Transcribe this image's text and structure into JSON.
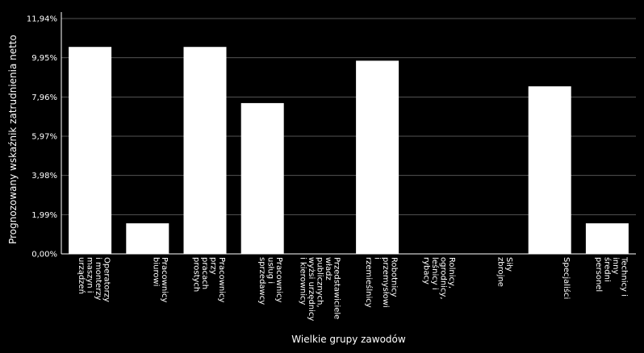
{
  "chart_data": {
    "type": "bar",
    "xlabel": "Wielkie grupy zawodów",
    "ylabel": "Prognozowany wskaźnik zatrudnienia netto",
    "ylim": [
      0,
      11.94
    ],
    "yticks": [
      "0,00%",
      "1,99%",
      "3,98%",
      "5,97%",
      "7,96%",
      "9,95%",
      "11,94%"
    ],
    "grid": true,
    "colors": {
      "background": "#000000",
      "bar": "#ffffff",
      "grid": "#555555",
      "text": "#ffffff"
    },
    "categories": [
      [
        "Operatorzy",
        "i monterzy",
        "maszyn i",
        "urządzeń"
      ],
      [
        "Pracownicy",
        "biurowi"
      ],
      [
        "Pracownicy",
        "przy",
        "pracach",
        "prostych"
      ],
      [
        "Pracownicy",
        "usług i",
        "sprzedawcy"
      ],
      [
        "Przedstawiciele",
        "władz",
        "publicznych,",
        "wyżsi urzędnicy",
        "i kierownicy"
      ],
      [
        "Robotnicy",
        "przemysłowi",
        "i",
        "rzemieślnicy"
      ],
      [
        "Rolnicy,",
        "ogrodnicy,",
        "leśnicy i",
        "rybacy"
      ],
      [
        "Siły",
        "zbrojne"
      ],
      [
        "Specjaliści"
      ],
      [
        "Technicy i",
        "inny",
        "średni",
        "personel"
      ]
    ],
    "values": [
      10.5,
      1.55,
      10.5,
      7.65,
      0,
      9.8,
      0,
      0,
      8.5,
      1.55
    ]
  }
}
